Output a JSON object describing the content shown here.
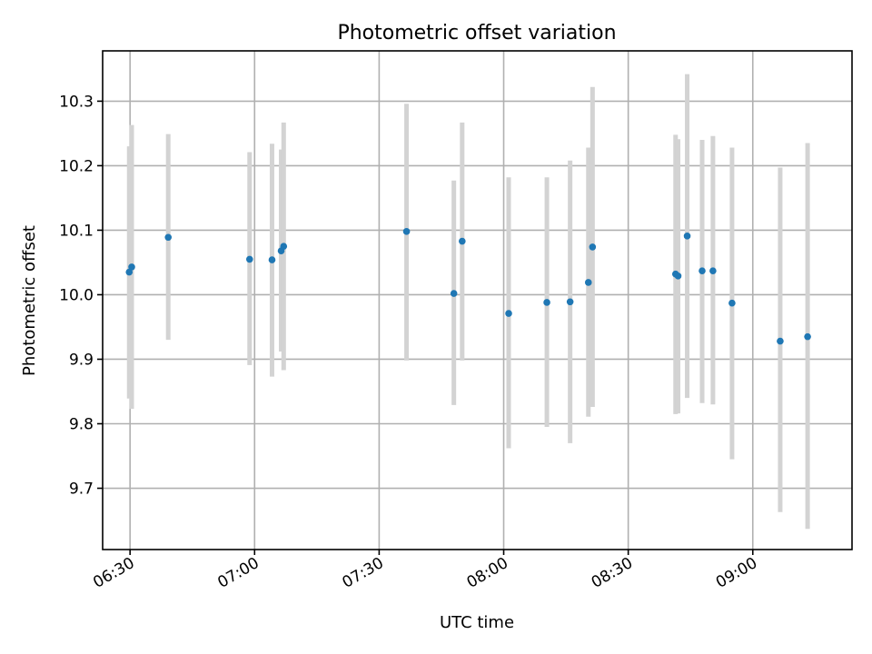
{
  "chart_data": {
    "type": "scatter",
    "title": "Photometric offset variation",
    "xlabel": "UTC time",
    "ylabel": "Photometric offset",
    "xlim": [
      "06:23:24",
      "09:23:54"
    ],
    "ylim": [
      9.605,
      10.378
    ],
    "x_ticks": [
      "06:30",
      "07:00",
      "07:30",
      "08:00",
      "08:30",
      "09:00"
    ],
    "y_ticks": [
      "9.7",
      "9.8",
      "9.9",
      "10.0",
      "10.1",
      "10.2",
      "10.3"
    ],
    "grid": true,
    "colors": {
      "points": "#1f77b4",
      "error_bars": "#d3d3d3",
      "grid": "#b0b0b0"
    },
    "series": [
      {
        "x": [
          "06:29:48",
          "06:30:24",
          "06:39:12",
          "06:58:48",
          "07:04:12",
          "07:06:24",
          "07:07:00",
          "07:36:36",
          "07:48:00",
          "07:50:00",
          "08:01:12",
          "08:10:24",
          "08:16:00",
          "08:20:24",
          "08:21:24",
          "08:41:24",
          "08:42:00",
          "08:44:12",
          "08:47:48",
          "08:50:24",
          "08:55:00",
          "09:06:36",
          "09:13:12"
        ],
        "y": [
          10.035,
          10.043,
          10.089,
          10.055,
          10.054,
          10.068,
          10.075,
          10.098,
          10.002,
          10.083,
          9.971,
          9.988,
          9.989,
          10.019,
          10.074,
          10.032,
          10.029,
          10.091,
          10.037,
          10.037,
          9.987,
          9.928,
          9.935
        ],
        "yerr_low": [
          9.839,
          9.823,
          9.93,
          9.891,
          9.873,
          9.912,
          9.883,
          9.898,
          9.829,
          9.898,
          9.762,
          9.795,
          9.77,
          9.811,
          9.826,
          9.815,
          9.816,
          9.84,
          9.832,
          9.83,
          9.745,
          9.663,
          9.637
        ],
        "yerr_high": [
          10.23,
          10.263,
          10.249,
          10.221,
          10.234,
          10.225,
          10.267,
          10.296,
          10.177,
          10.267,
          10.182,
          10.182,
          10.208,
          10.228,
          10.322,
          10.248,
          10.241,
          10.342,
          10.24,
          10.246,
          10.228,
          10.197,
          10.235
        ]
      }
    ]
  }
}
